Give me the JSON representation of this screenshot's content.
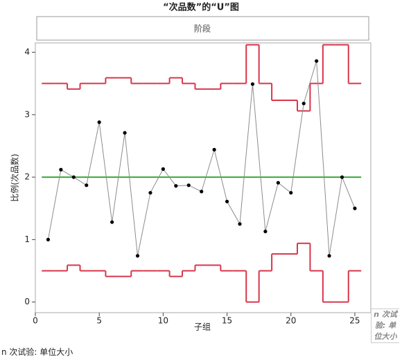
{
  "chart_data": {
    "type": "control",
    "title": "“次品数”的“U”图",
    "phase_label": "阶段",
    "x_label": "子组",
    "y_label": "比例(次品数)",
    "side_label": "n 次试验: 单位大小",
    "footnote": "n 次试验: 单位大小",
    "x": [
      1,
      2,
      3,
      4,
      5,
      6,
      7,
      8,
      9,
      10,
      11,
      12,
      13,
      14,
      15,
      16,
      17,
      18,
      19,
      20,
      21,
      22,
      23,
      24,
      25
    ],
    "values": [
      1.0,
      2.12,
      2.0,
      1.87,
      2.88,
      1.28,
      2.71,
      0.74,
      1.75,
      2.13,
      1.86,
      1.87,
      1.77,
      2.44,
      1.61,
      1.25,
      3.49,
      1.13,
      1.91,
      1.75,
      3.18,
      3.86,
      0.74,
      2.0,
      1.5
    ],
    "center": 2.0,
    "ucl": [
      3.5,
      3.5,
      3.41,
      3.5,
      3.5,
      3.59,
      3.59,
      3.5,
      3.5,
      3.5,
      3.59,
      3.5,
      3.41,
      3.41,
      3.5,
      3.5,
      4.12,
      3.5,
      3.23,
      3.23,
      3.06,
      3.5,
      4.12,
      4.12,
      3.5
    ],
    "lcl": [
      0.5,
      0.5,
      0.59,
      0.5,
      0.5,
      0.41,
      0.41,
      0.5,
      0.5,
      0.5,
      0.41,
      0.5,
      0.59,
      0.59,
      0.5,
      0.5,
      0,
      0.5,
      0.77,
      0.77,
      0.94,
      0.5,
      0,
      0,
      0.5
    ],
    "xlim": [
      0,
      26.25
    ],
    "ylim": [
      -0.17,
      4.15
    ],
    "xticks": [
      0,
      5,
      10,
      15,
      20,
      25
    ],
    "yticks": [
      0,
      1,
      2,
      3,
      4
    ],
    "limit_color": "#d7354a",
    "center_color": "#3aa63a",
    "point_color": "#000000",
    "line_color": "#8c8c8c"
  }
}
